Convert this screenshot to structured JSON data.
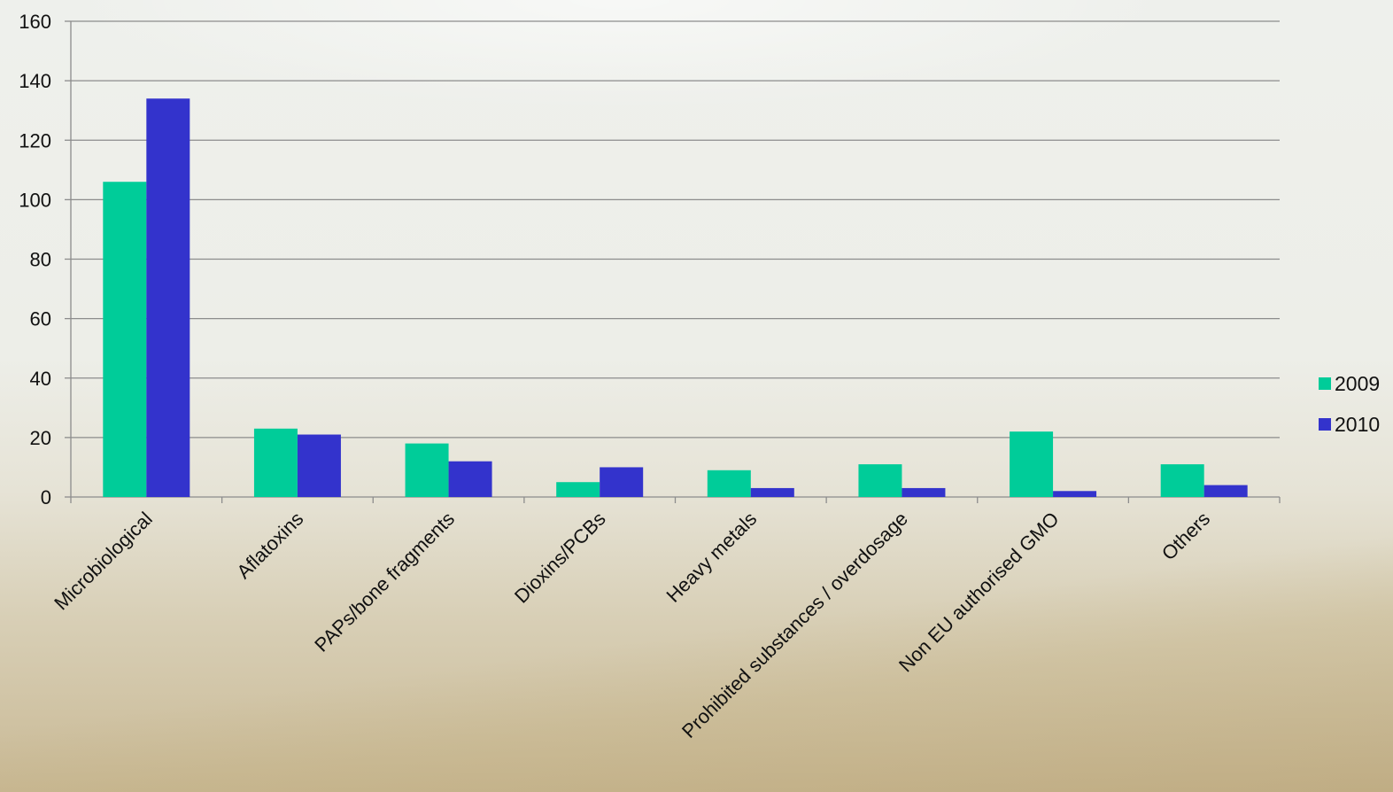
{
  "chart_data": {
    "type": "bar",
    "title": "",
    "xlabel": "",
    "ylabel": "",
    "ylim": [
      0,
      160
    ],
    "yticks": [
      0,
      20,
      40,
      60,
      80,
      100,
      120,
      140,
      160
    ],
    "grid": true,
    "legend_position": "right",
    "categories": [
      "Microbiological",
      "Aflatoxins",
      "PAPs/bone fragments",
      "Dioxins/PCBs",
      "Heavy metals",
      "Prohibited substances / overdosage",
      "Non EU authorised GMO",
      "Others"
    ],
    "series": [
      {
        "name": "2009",
        "color": "#00cc99",
        "values": [
          106,
          23,
          18,
          5,
          9,
          11,
          22,
          11
        ]
      },
      {
        "name": "2010",
        "color": "#3333cc",
        "values": [
          134,
          21,
          12,
          10,
          3,
          3,
          2,
          4
        ]
      }
    ]
  }
}
